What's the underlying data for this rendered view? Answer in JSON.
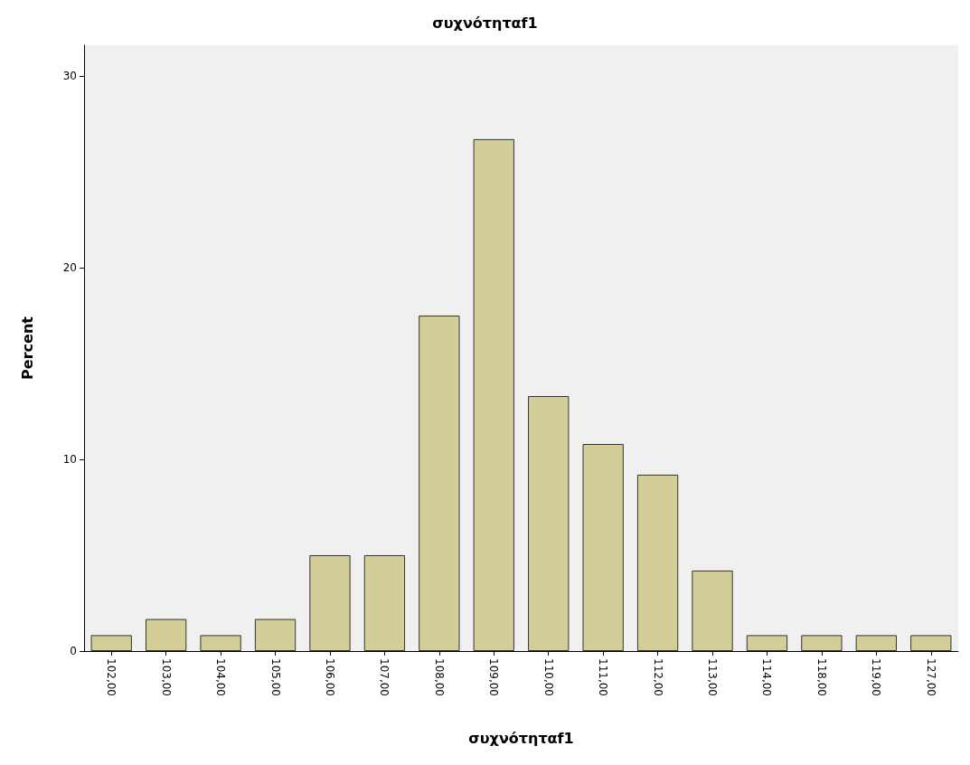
{
  "chart_data": {
    "type": "bar",
    "title": "συχνότηταf1",
    "xlabel": "συχνότηταf1",
    "ylabel": "Percent",
    "categories": [
      "102,00",
      "103,00",
      "104,00",
      "105,00",
      "106,00",
      "107,00",
      "108,00",
      "109,00",
      "110,00",
      "111,00",
      "112,00",
      "113,00",
      "114,00",
      "118,00",
      "119,00",
      "127,00"
    ],
    "values": [
      0.83,
      1.67,
      0.83,
      1.67,
      5.0,
      5.0,
      17.5,
      26.7,
      13.3,
      10.8,
      9.2,
      4.2,
      0.83,
      0.83,
      0.83,
      0.83
    ],
    "color": "#d3ce98",
    "ylim": [
      0,
      31.6
    ],
    "yticks": [
      0,
      10,
      20,
      30
    ],
    "grid": false
  }
}
